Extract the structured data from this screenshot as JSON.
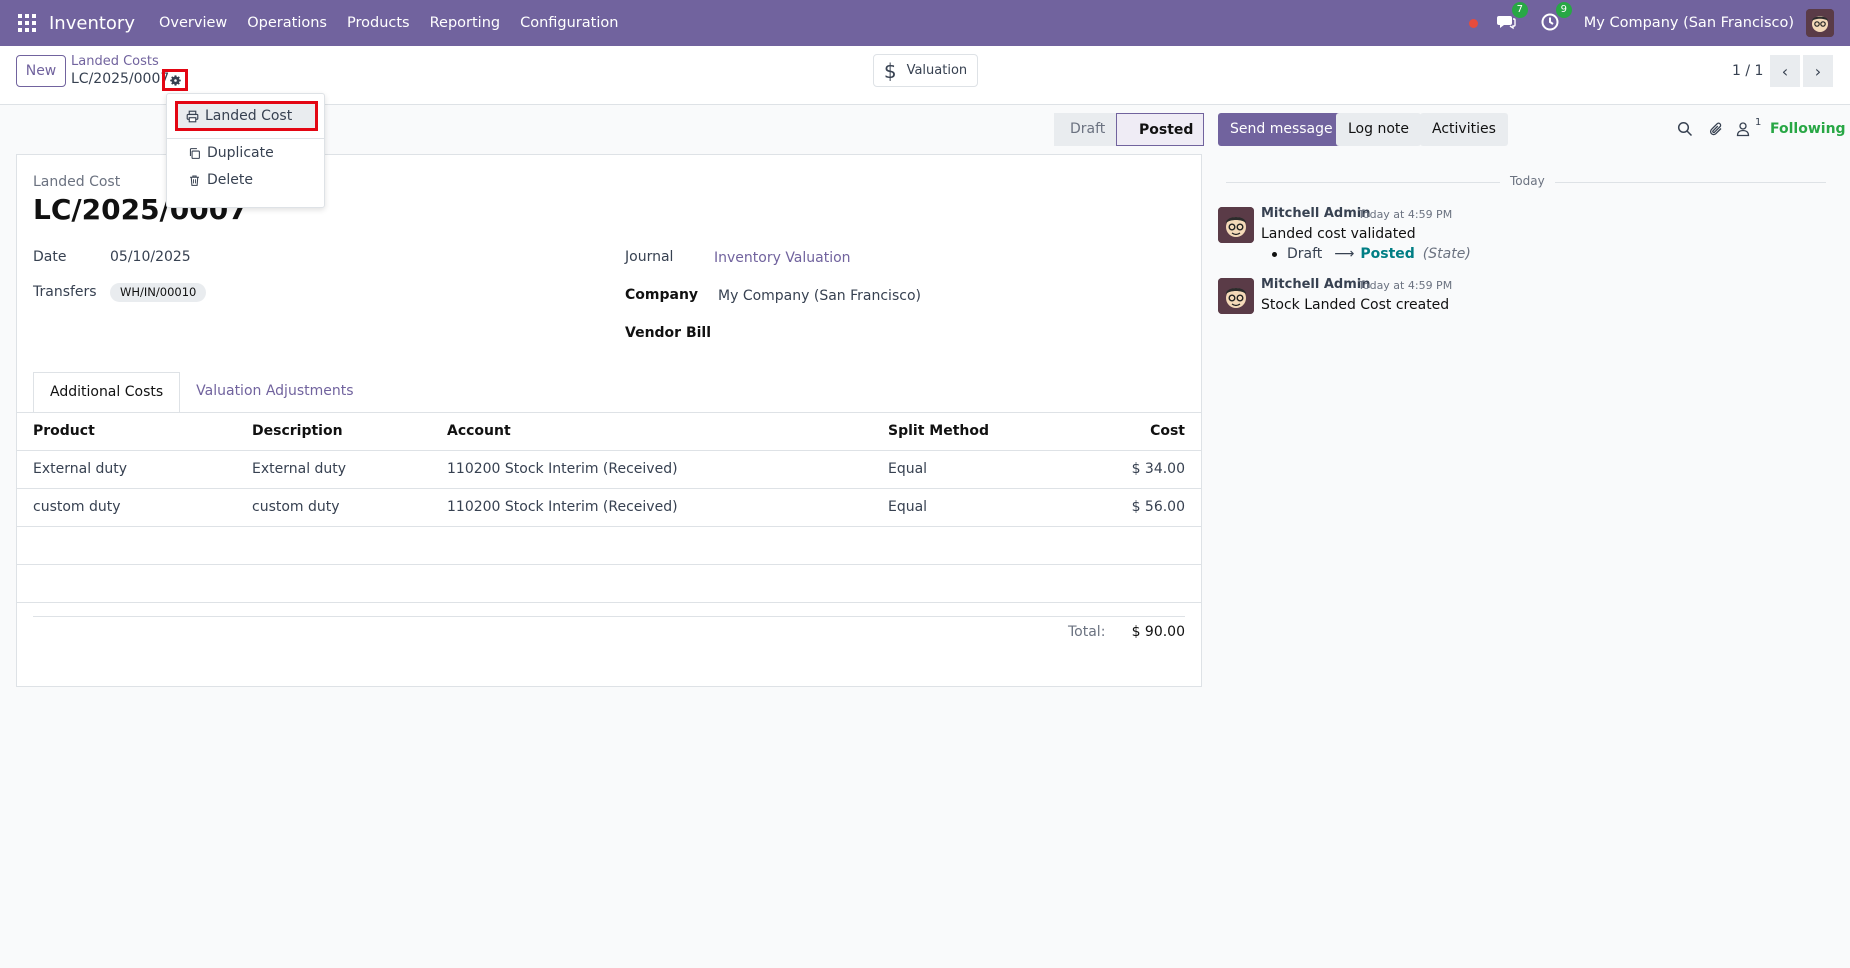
{
  "navbar": {
    "app_name": "Inventory",
    "menu": [
      "Overview",
      "Operations",
      "Products",
      "Reporting",
      "Configuration"
    ],
    "messages_count": "7",
    "activities_count": "9",
    "company": "My Company (San Francisco)"
  },
  "control": {
    "new_label": "New",
    "breadcrumb_parent": "Landed Costs",
    "breadcrumb_current": "LC/2025/0007",
    "valuation_label": "Valuation",
    "pager": "1 / 1"
  },
  "dropdown": {
    "items": [
      "Landed Cost",
      "Duplicate",
      "Delete"
    ]
  },
  "status": {
    "stages": [
      "Draft",
      "Posted"
    ],
    "current": "Posted"
  },
  "form": {
    "record_label": "Landed Cost",
    "record_name": "LC/2025/0007",
    "date_label": "Date",
    "date_value": "05/10/2025",
    "transfers_label": "Transfers",
    "transfer_tag": "WH/IN/00010",
    "journal_label": "Journal",
    "journal_value": "Inventory Valuation",
    "company_label": "Company",
    "company_value": "My Company (San Francisco)",
    "vendor_bill_label": "Vendor Bill",
    "tabs": [
      "Additional Costs",
      "Valuation Adjustments"
    ],
    "table": {
      "headers": [
        "Product",
        "Description",
        "Account",
        "Split Method",
        "Cost"
      ],
      "rows": [
        [
          "External duty",
          "External duty",
          "110200 Stock Interim (Received)",
          "Equal",
          "$ 34.00"
        ],
        [
          "custom duty",
          "custom duty",
          "110200 Stock Interim (Received)",
          "Equal",
          "$ 56.00"
        ]
      ]
    },
    "total_label": "Total:",
    "total_value": "$ 90.00"
  },
  "chatter": {
    "send_message": "Send message",
    "log_note": "Log note",
    "activities": "Activities",
    "follower_count": "1",
    "following": "Following",
    "day": "Today",
    "messages": [
      {
        "author": "Mitchell Admin",
        "time": "Today at 4:59 PM",
        "body": "Landed cost validated",
        "track_old": "Draft",
        "track_new": "Posted",
        "track_field": "(State)"
      },
      {
        "author": "Mitchell Admin",
        "time": "Today at 4:59 PM",
        "body": "Stock Landed Cost created"
      }
    ]
  },
  "colors": {
    "brand": "#71639e",
    "highlight": "#e30613",
    "success": "#28a745",
    "tracking": "#017e84"
  }
}
